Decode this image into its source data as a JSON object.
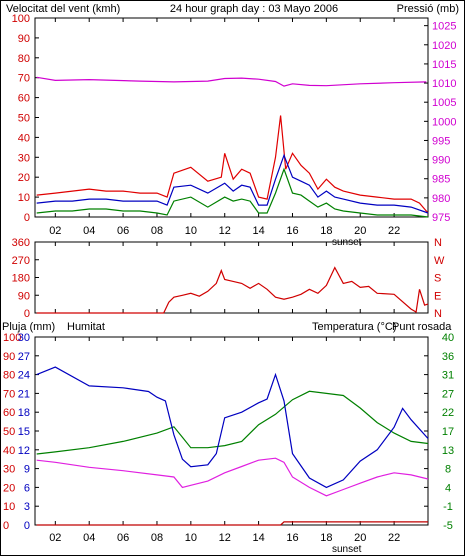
{
  "header": {
    "left_label": "Velocitat del vent (kmh)",
    "center_label": "24 hour graph day : 03 Mayo 2006",
    "right_label": "Pressió (mb)"
  },
  "panel3_labels": {
    "left1": "Pluja (mm)",
    "left2": "Humitat",
    "right1": "Temperatura (°C)",
    "right2": "Punt rosada"
  },
  "colors": {
    "wind_max": "#e00000",
    "wind_avg": "#0000c0",
    "wind_min": "#008000",
    "pressure": "#d000d0",
    "direction": "#d00000",
    "humidity": "#0000c0",
    "temperature": "#008000",
    "dew_point": "#e020e0",
    "rain": "#c00000",
    "left_axis": "#d00000",
    "right_axis_pressure": "#d000d0",
    "right_axis_temp": "#008000"
  },
  "chart_data": [
    {
      "type": "line",
      "title": "24 hour graph day : 03 Mayo 2006",
      "x_ticks": [
        "02",
        "04",
        "06",
        "08",
        "10",
        "12",
        "14",
        "16",
        "18",
        "20",
        "22"
      ],
      "x_marker": "sunset",
      "y_left_label": "Velocitat del vent (kmh)",
      "y_left_ticks": [
        0,
        10,
        20,
        30,
        40,
        50,
        60,
        70,
        80,
        90,
        100
      ],
      "y_left_range": [
        0,
        100
      ],
      "y_right_label": "Pressió (mb)",
      "y_right_ticks": [
        975,
        980,
        985,
        990,
        995,
        1000,
        1005,
        1010,
        1015,
        1020,
        1025
      ],
      "y_right_range": [
        975,
        1027
      ],
      "x_range": [
        0.8,
        24
      ],
      "pressure": {
        "x": [
          0.9,
          2,
          4,
          7,
          9,
          11,
          12,
          13,
          14,
          15,
          15.5,
          16,
          17,
          18,
          20,
          22,
          23.9
        ],
        "y": [
          1011.5,
          1010.7,
          1010.9,
          1010.5,
          1010.3,
          1010.5,
          1011.2,
          1011.3,
          1011.0,
          1010.4,
          1009.2,
          1009.8,
          1009.4,
          1009.3,
          1009.8,
          1010.1,
          1010.3
        ]
      },
      "wind_max": {
        "x": [
          0.9,
          2,
          3,
          4,
          5,
          6,
          7,
          8,
          8.6,
          9,
          10,
          11,
          11.8,
          12,
          12.5,
          13,
          13.5,
          14,
          14.5,
          15,
          15.3,
          15.6,
          16,
          16.5,
          17,
          17.5,
          18,
          18.5,
          19,
          20,
          21,
          22,
          23,
          23.5,
          24
        ],
        "y": [
          11,
          12,
          13,
          14,
          13,
          13,
          12,
          12,
          10,
          22,
          25,
          18,
          20,
          32,
          19,
          24,
          22,
          10,
          9,
          30,
          51,
          24,
          32,
          26,
          22,
          14,
          19,
          15,
          13,
          11,
          10,
          9,
          9,
          7,
          2
        ]
      },
      "wind_avg": {
        "x": [
          0.9,
          2,
          3,
          4,
          5,
          6,
          7,
          8,
          8.6,
          9,
          10,
          11,
          12,
          12.5,
          13,
          13.5,
          14,
          14.5,
          15,
          15.5,
          16,
          16.5,
          17,
          17.5,
          18,
          18.5,
          19,
          20,
          21,
          22,
          23,
          24
        ],
        "y": [
          7,
          8,
          8,
          9,
          9,
          8,
          8,
          8,
          6,
          15,
          16,
          12,
          17,
          13,
          16,
          15,
          6,
          6,
          19,
          31,
          20,
          18,
          16,
          10,
          13,
          10,
          9,
          7,
          6,
          6,
          5,
          2
        ]
      },
      "wind_min": {
        "x": [
          0.9,
          2,
          3,
          4,
          5,
          6,
          7,
          8,
          8.6,
          9,
          10,
          11,
          12,
          12.5,
          13,
          13.5,
          14,
          14.5,
          15,
          15.5,
          16,
          16.5,
          17,
          17.5,
          18,
          18.5,
          19,
          20,
          21,
          22,
          23,
          24
        ],
        "y": [
          2,
          3,
          3,
          4,
          4,
          3,
          3,
          2,
          1,
          8,
          10,
          5,
          10,
          8,
          9,
          8,
          2,
          2,
          12,
          24,
          12,
          11,
          8,
          5,
          7,
          4,
          3,
          2,
          1,
          1,
          1,
          0
        ]
      }
    },
    {
      "type": "line",
      "x_ticks": [
        "02",
        "04",
        "06",
        "08",
        "10",
        "12",
        "14",
        "16",
        "18",
        "20",
        "22"
      ],
      "y_left_ticks": [
        0,
        90,
        180,
        270,
        360
      ],
      "y_left_range": [
        0,
        360
      ],
      "y_right_ticks": [
        "N",
        "E",
        "S",
        "W",
        "N"
      ],
      "x_range": [
        0.8,
        24
      ],
      "direction": {
        "x": [
          0.9,
          3,
          5,
          7,
          8.4,
          8.7,
          9,
          9.5,
          10,
          10.5,
          11,
          11.5,
          11.8,
          12,
          12.5,
          13,
          13.5,
          14,
          14.5,
          15,
          15.5,
          16,
          16.5,
          17,
          17.5,
          18,
          18.5,
          19,
          19.5,
          20,
          20.5,
          21,
          22,
          23,
          23.3,
          23.5,
          23.8,
          24
        ],
        "y": [
          0,
          0,
          0,
          0,
          0,
          55,
          80,
          90,
          100,
          85,
          110,
          150,
          215,
          170,
          160,
          150,
          125,
          150,
          120,
          80,
          70,
          80,
          95,
          120,
          100,
          140,
          230,
          150,
          160,
          130,
          135,
          100,
          95,
          20,
          5,
          120,
          40,
          45
        ]
      }
    },
    {
      "type": "line",
      "x_ticks": [
        "02",
        "04",
        "06",
        "08",
        "10",
        "12",
        "14",
        "16",
        "18",
        "20",
        "22"
      ],
      "x_marker": "sunset",
      "y_left_ticks_inner": [
        0,
        3,
        6,
        9,
        12,
        15,
        18,
        21,
        24,
        27,
        30
      ],
      "y_left_ticks_outer": [
        0,
        10,
        20,
        30,
        40,
        50,
        60,
        70,
        80,
        90,
        100
      ],
      "y_left_range": [
        0,
        100
      ],
      "y_right_ticks": [
        -5,
        -1,
        4,
        8,
        13,
        17,
        22,
        27,
        31,
        36,
        40
      ],
      "y_right_range": [
        -5,
        40
      ],
      "x_range": [
        0.8,
        24
      ],
      "humidity": {
        "x": [
          0.9,
          2,
          4,
          6,
          7.5,
          8,
          8.5,
          9,
          9.5,
          10,
          11,
          11.5,
          12,
          13,
          14,
          14.5,
          15,
          15.5,
          16,
          17,
          18,
          19,
          20,
          21,
          22,
          22.5,
          23,
          24
        ],
        "y": [
          80,
          84,
          74,
          73,
          71,
          68,
          66,
          48,
          35,
          31,
          32,
          38,
          57,
          60,
          65,
          67,
          80,
          66,
          38,
          25,
          20,
          24,
          34,
          40,
          52,
          62,
          56,
          46
        ]
      },
      "temperature": {
        "x": [
          0.9,
          2,
          4,
          6,
          8,
          9,
          9.5,
          10,
          11,
          12,
          13,
          14,
          15,
          16,
          17,
          18,
          19,
          20,
          21,
          22,
          23,
          24
        ],
        "y": [
          12.0,
          12.5,
          13.5,
          15.0,
          17.0,
          18.5,
          16.0,
          13.5,
          13.5,
          14.0,
          15.0,
          19.0,
          21.5,
          25.0,
          27.0,
          26.5,
          26.0,
          23.0,
          19.5,
          17.0,
          15.0,
          14.5
        ]
      },
      "dew_point": {
        "x": [
          0.9,
          2,
          4,
          6,
          8,
          9,
          9.5,
          10,
          11,
          12,
          13,
          14,
          15,
          15.5,
          16,
          17,
          18,
          19,
          20,
          21,
          22,
          23,
          24
        ],
        "y": [
          10.5,
          10.0,
          8.8,
          8.0,
          7.0,
          6.5,
          4.0,
          4.5,
          5.5,
          7.5,
          9.0,
          10.5,
          11.0,
          10.0,
          6.5,
          4.0,
          2.0,
          3.5,
          5.0,
          6.5,
          7.5,
          7.0,
          6.0
        ]
      },
      "rain": {
        "x": [
          0.9,
          15.3,
          15.5,
          24
        ],
        "y": [
          0,
          0,
          0.5,
          0.5
        ]
      }
    }
  ]
}
